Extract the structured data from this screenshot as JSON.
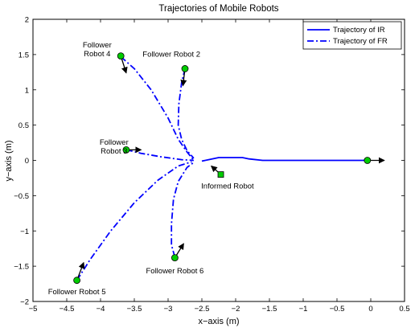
{
  "chart_data": {
    "type": "line",
    "title": "Trajectories of Mobile Robots",
    "xlabel": "x−axis (m)",
    "ylabel": "y−axis (m)",
    "xlim": [
      -5,
      0.5
    ],
    "ylim": [
      -2,
      2
    ],
    "xticks": [
      -5,
      -4.5,
      -4,
      -3.5,
      -3,
      -2.5,
      -2,
      -1.5,
      -1,
      -0.5,
      0,
      0.5
    ],
    "xtick_labels": [
      "−5",
      "−4.5",
      "−4",
      "−3.5",
      "−3",
      "−2.5",
      "−2",
      "−1.5",
      "−1",
      "−0.5",
      "0",
      "0.5"
    ],
    "yticks": [
      -2,
      -1.5,
      -1,
      -0.5,
      0,
      0.5,
      1,
      1.5,
      2
    ],
    "ytick_labels": [
      "−2",
      "−1.5",
      "−1",
      "−0.5",
      "0",
      "0.5",
      "1",
      "1.5",
      "2"
    ],
    "grid": false,
    "legend_position": "top-right",
    "legend": [
      {
        "label": "Trajectory of IR",
        "style": "solid"
      },
      {
        "label": "Trajectory of FR",
        "style": "dashdot"
      }
    ],
    "colors": {
      "trajectory": "#0000ff",
      "start_marker": "#00cc00",
      "robot_marker": "#00cc00",
      "arrow": "#000000"
    },
    "series": [
      {
        "name": "Trajectory of IR",
        "style": "solid",
        "points": [
          [
            -0.05,
            0.0
          ],
          [
            -0.3,
            0.0
          ],
          [
            -0.8,
            0.0
          ],
          [
            -1.3,
            0.0
          ],
          [
            -1.6,
            0.0
          ],
          [
            -1.8,
            0.02
          ],
          [
            -1.9,
            0.04
          ],
          [
            -2.0,
            0.04
          ],
          [
            -2.1,
            0.04
          ],
          [
            -2.25,
            0.04
          ],
          [
            -2.4,
            0.01
          ],
          [
            -2.5,
            -0.01
          ]
        ]
      },
      {
        "name": "Trajectory of FR",
        "style": "dashdot",
        "points": [
          [
            -3.7,
            1.47
          ],
          [
            -3.5,
            1.3
          ],
          [
            -3.25,
            1.0
          ],
          [
            -3.0,
            0.6
          ],
          [
            -2.85,
            0.3
          ],
          [
            -2.72,
            0.12
          ],
          [
            -2.62,
            0.0
          ]
        ]
      },
      {
        "name": "",
        "style": "dashdot",
        "points": [
          [
            -2.75,
            1.3
          ],
          [
            -2.8,
            1.1
          ],
          [
            -2.84,
            0.8
          ],
          [
            -2.85,
            0.5
          ],
          [
            -2.8,
            0.3
          ],
          [
            -2.72,
            0.14
          ],
          [
            -2.62,
            0.03
          ]
        ]
      },
      {
        "name": "",
        "style": "dashdot",
        "points": [
          [
            -3.62,
            0.15
          ],
          [
            -3.4,
            0.1
          ],
          [
            -3.1,
            0.05
          ],
          [
            -2.8,
            0.01
          ],
          [
            -2.62,
            0.0
          ]
        ]
      },
      {
        "name": "",
        "style": "dashdot",
        "points": [
          [
            -4.35,
            -1.7
          ],
          [
            -4.15,
            -1.4
          ],
          [
            -3.85,
            -1.0
          ],
          [
            -3.5,
            -0.6
          ],
          [
            -3.15,
            -0.28
          ],
          [
            -2.85,
            -0.08
          ],
          [
            -2.65,
            -0.02
          ]
        ]
      },
      {
        "name": "",
        "style": "dashdot",
        "points": [
          [
            -2.9,
            -1.37
          ],
          [
            -2.95,
            -1.2
          ],
          [
            -2.95,
            -0.9
          ],
          [
            -2.92,
            -0.55
          ],
          [
            -2.85,
            -0.3
          ],
          [
            -2.72,
            -0.1
          ],
          [
            -2.62,
            -0.03
          ]
        ]
      }
    ],
    "start_markers": [
      {
        "x": -3.7,
        "y": 1.48,
        "shape": "circle"
      },
      {
        "x": -2.75,
        "y": 1.3,
        "shape": "circle"
      },
      {
        "x": -3.62,
        "y": 0.15,
        "shape": "circle"
      },
      {
        "x": -4.35,
        "y": -1.7,
        "shape": "circle"
      },
      {
        "x": -2.9,
        "y": -1.38,
        "shape": "circle"
      },
      {
        "x": -2.22,
        "y": -0.2,
        "shape": "square"
      }
    ],
    "robot_markers": [
      {
        "x": -0.05,
        "y": 0.0,
        "shape": "circle"
      }
    ],
    "arrows": [
      {
        "x": -3.7,
        "y": 1.48,
        "dx": 0.08,
        "dy": -0.24
      },
      {
        "x": -2.75,
        "y": 1.3,
        "dx": -0.03,
        "dy": -0.24
      },
      {
        "x": -3.62,
        "y": 0.15,
        "dx": 0.22,
        "dy": 0.0
      },
      {
        "x": -4.35,
        "y": -1.7,
        "dx": 0.1,
        "dy": 0.25
      },
      {
        "x": -2.9,
        "y": -1.38,
        "dx": 0.13,
        "dy": 0.2
      },
      {
        "x": -2.22,
        "y": -0.2,
        "dx": -0.14,
        "dy": 0.12
      },
      {
        "x": -0.05,
        "y": 0.0,
        "dx": 0.25,
        "dy": 0.0
      }
    ],
    "annotations": [
      {
        "lines": [
          "Follower",
          "Robot 4"
        ],
        "x": -4.05,
        "y": 1.6,
        "align": "middle"
      },
      {
        "lines": [
          "Follower Robot 2"
        ],
        "x": -2.95,
        "y": 1.47,
        "align": "middle"
      },
      {
        "lines": [
          "Follower",
          "Robot 3"
        ],
        "x": -3.8,
        "y": 0.22,
        "align": "middle"
      },
      {
        "lines": [
          "Informed Robot"
        ],
        "x": -2.12,
        "y": -0.4,
        "align": "middle"
      },
      {
        "lines": [
          "Follower Robot 5"
        ],
        "x": -4.35,
        "y": -1.9,
        "align": "middle"
      },
      {
        "lines": [
          "Follower Robot 6"
        ],
        "x": -2.9,
        "y": -1.6,
        "align": "middle"
      }
    ]
  }
}
